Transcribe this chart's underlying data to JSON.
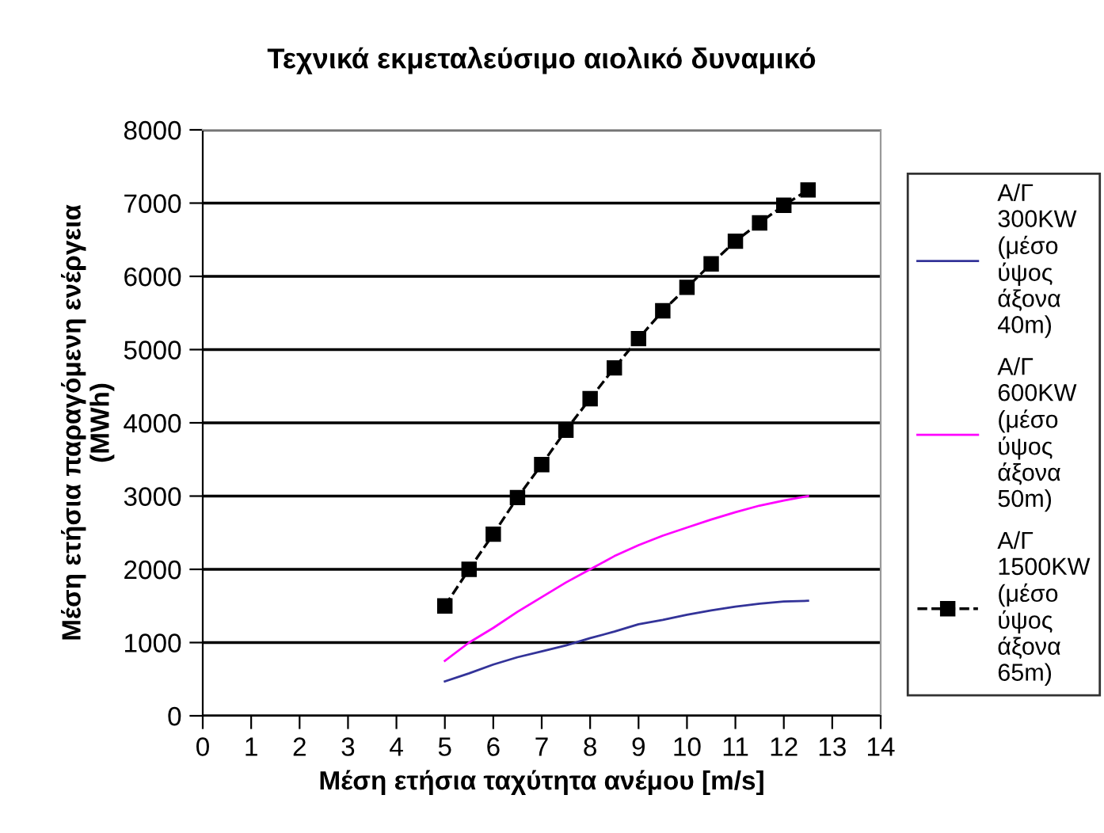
{
  "chart_data": {
    "type": "line",
    "title": "Τεχνικά εκμεταλεύσιμο αιολικό δυναμικό",
    "xlabel": "Μέση ετήσια ταχύτητα ανέμου [m/s]",
    "ylabel": "Μέση ετήσια παραγόμενη ενέργεια\n(MWh)",
    "xlim": [
      0,
      14
    ],
    "xticks": [
      0,
      1,
      2,
      3,
      4,
      5,
      6,
      7,
      8,
      9,
      10,
      11,
      12,
      13,
      14
    ],
    "ylim": [
      0,
      8000
    ],
    "yticks": [
      0,
      1000,
      2000,
      3000,
      4000,
      5000,
      6000,
      7000,
      8000
    ],
    "grid": "y",
    "legend": "right",
    "x": [
      5,
      5.5,
      6,
      6.5,
      7,
      7.5,
      8,
      8.5,
      9,
      9.5,
      10,
      10.5,
      11,
      11.5,
      12,
      12.5
    ],
    "series": [
      {
        "name": "Α/Γ 300KW (μέσο ύψος άξονα 40m)",
        "color": "#333399",
        "marker": "none",
        "line_style": "solid",
        "values": [
          470,
          580,
          700,
          800,
          880,
          960,
          1060,
          1150,
          1250,
          1310,
          1380,
          1440,
          1490,
          1530,
          1560,
          1570
        ]
      },
      {
        "name": "Α/Γ 600KW (μέσο ύψος άξονα 50m)",
        "color": "#ff00ff",
        "marker": "none",
        "line_style": "solid",
        "values": [
          750,
          1000,
          1200,
          1420,
          1620,
          1820,
          2000,
          2180,
          2330,
          2460,
          2570,
          2680,
          2780,
          2870,
          2940,
          3000
        ]
      },
      {
        "name": "Α/Γ 1500KW (μέσο ύψος άξονα 65m)",
        "color": "#000000",
        "marker": "square",
        "line_style": "dashed",
        "values": [
          1500,
          2000,
          2480,
          2980,
          3430,
          3900,
          4330,
          4750,
          5150,
          5530,
          5850,
          6170,
          6480,
          6730,
          6970,
          7180
        ]
      }
    ]
  }
}
